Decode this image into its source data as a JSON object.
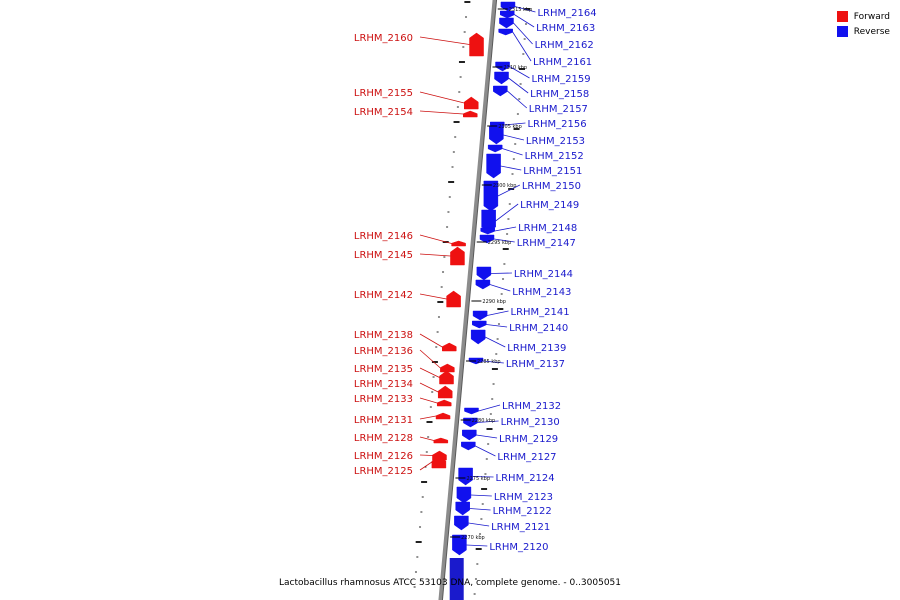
{
  "legend": {
    "forward": {
      "label": "Forward",
      "color": "#ee1111"
    },
    "reverse": {
      "label": "Reverse",
      "color": "#1111ee"
    }
  },
  "caption": "Lactobacillus rhamnosus ATCC 53103 DNA, complete genome. - 0..3005051",
  "kbp_marks": [
    "2315 kbp",
    "2310 kbp",
    "2305 kbp",
    "2300 kbp",
    "2295 kbp",
    "2290 kbp",
    "2285 kbp",
    "2280 kbp",
    "2275 kbp",
    "2270 kbp"
  ],
  "forward_genes": [
    "LRHM_2160",
    "LRHM_2155",
    "LRHM_2154",
    "LRHM_2146",
    "LRHM_2145",
    "LRHM_2142",
    "LRHM_2138",
    "LRHM_2136",
    "LRHM_2135",
    "LRHM_2134",
    "LRHM_2133",
    "LRHM_2131",
    "LRHM_2128",
    "LRHM_2126",
    "LRHM_2125"
  ],
  "reverse_genes": [
    "LRHM_2164",
    "LRHM_2163",
    "LRHM_2162",
    "LRHM_2161",
    "LRHM_2159",
    "LRHM_2158",
    "LRHM_2157",
    "LRHM_2156",
    "LRHM_2153",
    "LRHM_2152",
    "LRHM_2151",
    "LRHM_2150",
    "LRHM_2149",
    "LRHM_2148",
    "LRHM_2147",
    "LRHM_2144",
    "LRHM_2143",
    "LRHM_2141",
    "LRHM_2140",
    "LRHM_2139",
    "LRHM_2137",
    "LRHM_2132",
    "LRHM_2130",
    "LRHM_2129",
    "LRHM_2127",
    "LRHM_2124",
    "LRHM_2123",
    "LRHM_2122",
    "LRHM_2121",
    "LRHM_2120"
  ]
}
